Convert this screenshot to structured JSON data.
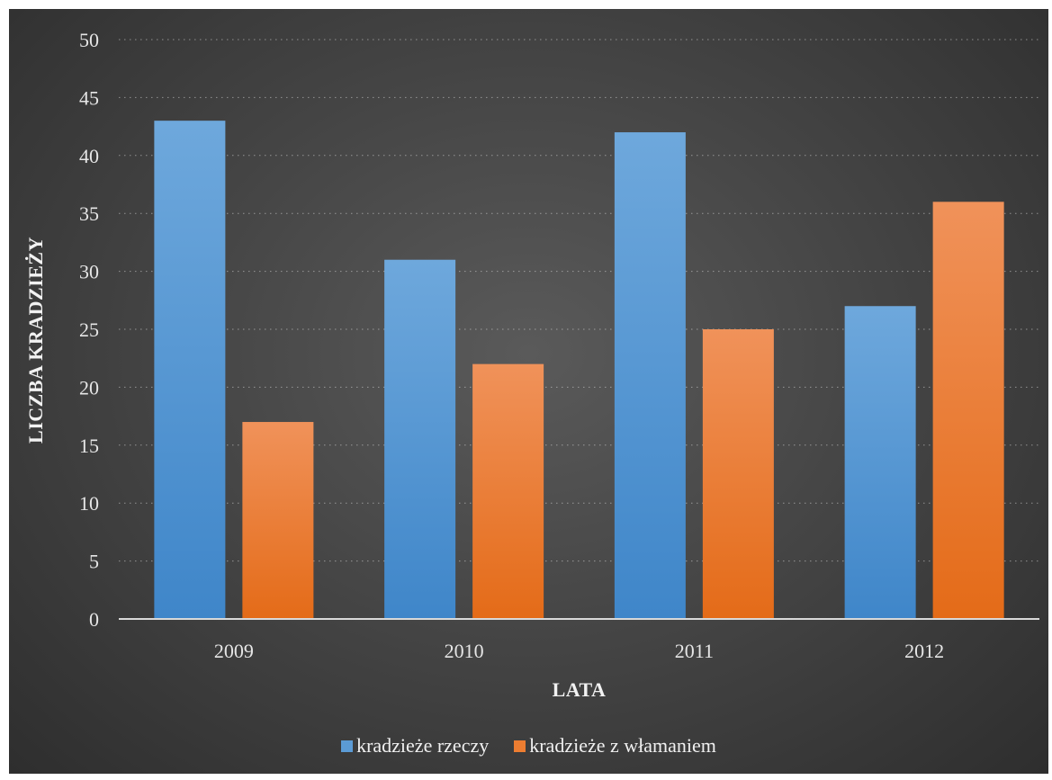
{
  "chart_data": {
    "type": "bar",
    "title": "",
    "xlabel": "LATA",
    "ylabel": "LICZBA KRADZIEŻY",
    "categories": [
      "2009",
      "2010",
      "2011",
      "2012"
    ],
    "ylim": [
      0,
      50
    ],
    "yticks": [
      0,
      5,
      10,
      15,
      20,
      25,
      30,
      35,
      40,
      45,
      50
    ],
    "grid": true,
    "legend_position": "bottom",
    "series": [
      {
        "name": "kradzieże rzeczy",
        "values": [
          43,
          31,
          42,
          27
        ],
        "color": "#5b9bd5"
      },
      {
        "name": "kradzieże z włamaniem",
        "values": [
          17,
          22,
          25,
          36
        ],
        "color": "#ed7d31"
      }
    ]
  },
  "colors": {
    "background_center": "#5a5a5a",
    "background_edge": "#2e2e2e",
    "text": "#e6e6e6",
    "gridline": "#d9d9d9"
  }
}
